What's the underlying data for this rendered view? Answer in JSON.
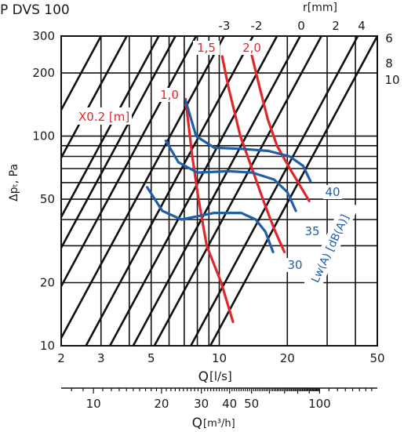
{
  "title": "P DVS 100",
  "chart_data": {
    "type": "line",
    "xlabel": "Q",
    "xunit": "[l/s]",
    "x2label": "Q",
    "x2unit": "[m³/h]",
    "ylabel": "Δpₜ, Pa",
    "toplabel": "r[mm]",
    "xscale": "log",
    "yscale": "log",
    "xlim": [
      2,
      50
    ],
    "ylim": [
      10,
      300
    ],
    "x_ticks": [
      2,
      3,
      5,
      10,
      20,
      50
    ],
    "y_ticks": [
      10,
      20,
      50,
      100,
      200,
      300
    ],
    "x2_ticks": [
      10,
      20,
      30,
      40,
      50,
      100
    ],
    "damper_positions": [
      {
        "label": "-3",
        "x_at_300": 7.9
      },
      {
        "label": "-2",
        "x_at_300": 10.5
      },
      {
        "label": "0",
        "x_at_300": 14.1
      },
      {
        "label": "2",
        "x_at_300": 18.0
      },
      {
        "label": "4",
        "x_at_300": 22.8
      },
      {
        "label": "6",
        "x_at_300": 28.3
      },
      {
        "label": "8",
        "x_at_300": 41.0
      },
      {
        "label": "10",
        "x_at_300": 50.0
      },
      {
        "label": "",
        "x_at_300": 6.4
      },
      {
        "label": "",
        "x_at_300": 5.4
      },
      {
        "label": "",
        "x_at_300": 3.9
      },
      {
        "label": "",
        "x_at_300": 3.0
      }
    ],
    "throw_legend": "X0.2 [m]",
    "throw_series": [
      {
        "name": "1,0",
        "points": [
          [
            7.1,
            150
          ],
          [
            7.6,
            80
          ],
          [
            8.1,
            50
          ],
          [
            8.8,
            30
          ],
          [
            10.2,
            20
          ],
          [
            11.5,
            13
          ]
        ]
      },
      {
        "name": "1,5",
        "points": [
          [
            10.3,
            240
          ],
          [
            11.0,
            170
          ],
          [
            12.4,
            100
          ],
          [
            14.3,
            65
          ],
          [
            15.8,
            48
          ],
          [
            17.5,
            36
          ],
          [
            19.4,
            28
          ]
        ]
      },
      {
        "name": "2,0",
        "points": [
          [
            13.9,
            245
          ],
          [
            15.1,
            170
          ],
          [
            16.4,
            120
          ],
          [
            18.0,
            90
          ],
          [
            20.5,
            70
          ],
          [
            23.0,
            57
          ],
          [
            25.0,
            49
          ]
        ]
      }
    ],
    "sound_legend": "Lw(A) [dB(A)]",
    "sound_series": [
      {
        "name": "30",
        "points": [
          [
            4.8,
            57
          ],
          [
            5.6,
            44
          ],
          [
            6.8,
            40
          ],
          [
            9.5,
            43
          ],
          [
            12.5,
            43
          ],
          [
            14.5,
            40
          ],
          [
            16.0,
            35
          ],
          [
            17.3,
            28
          ]
        ]
      },
      {
        "name": "35",
        "points": [
          [
            5.8,
            95
          ],
          [
            6.6,
            75
          ],
          [
            8.0,
            67
          ],
          [
            11.0,
            68
          ],
          [
            14.0,
            67
          ],
          [
            17.5,
            62
          ],
          [
            20.0,
            54
          ],
          [
            21.8,
            44
          ]
        ]
      },
      {
        "name": "40",
        "points": [
          [
            7.1,
            148
          ],
          [
            7.9,
            100
          ],
          [
            9.5,
            88
          ],
          [
            12.5,
            87
          ],
          [
            16.5,
            85
          ],
          [
            20.5,
            80
          ],
          [
            23.5,
            72
          ],
          [
            25.3,
            61
          ]
        ]
      }
    ],
    "grid": true,
    "colors": {
      "axis": "#111111",
      "throw": "#e0272b",
      "sound": "#1f5fa8"
    }
  }
}
